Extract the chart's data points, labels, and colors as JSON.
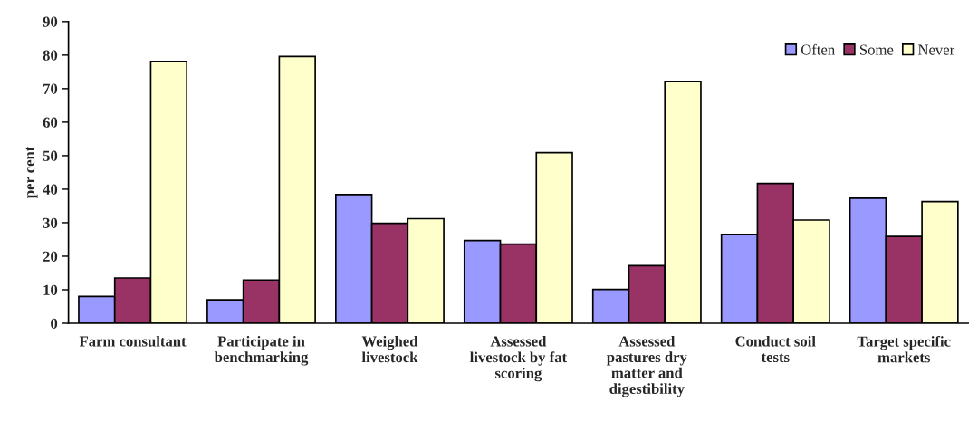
{
  "chart_data": {
    "type": "bar",
    "ylabel": "per cent",
    "categories": [
      "Farm consultant",
      "Participate in benchmarking",
      "Weighed livestock",
      "Assessed livestock by fat scoring",
      "Assessed pastures dry matter and digestibility",
      "Conduct soil tests",
      "Target specific markets"
    ],
    "series": [
      {
        "name": "Often",
        "color": "#9999ff",
        "values": [
          8,
          7,
          38.4,
          24.7,
          10.1,
          26.5,
          37.3
        ]
      },
      {
        "name": "Some",
        "color": "#993366",
        "values": [
          13.5,
          12.9,
          29.8,
          23.6,
          17.2,
          41.7,
          25.9
        ]
      },
      {
        "name": "Never",
        "color": "#ffffcc",
        "values": [
          78.1,
          79.6,
          31.2,
          50.9,
          72.1,
          30.8,
          36.3
        ]
      }
    ],
    "ylim": [
      0,
      90
    ],
    "yticks": [
      0,
      10,
      20,
      30,
      40,
      50,
      60,
      70,
      80,
      90
    ],
    "grid": false,
    "legend": "top right"
  }
}
